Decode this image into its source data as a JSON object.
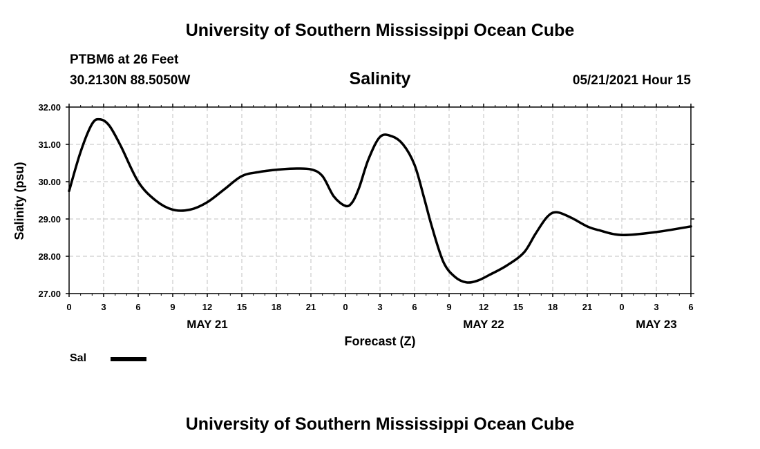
{
  "header": {
    "top_title": "University of Southern Mississippi Ocean Cube",
    "station": "PTBM6 at 26 Feet",
    "coords": "30.2130N  88.5050W",
    "date_hour": "05/21/2021 Hour 15",
    "bottom_title": "University of Southern Mississippi Ocean Cube"
  },
  "legend": {
    "label": "Sal",
    "color": "#000000"
  },
  "chart_data": {
    "type": "line",
    "title": "Salinity",
    "xlabel": "Forecast (Z)",
    "ylabel": "Salinity (psu)",
    "ylim": [
      27.0,
      32.0
    ],
    "yticks": [
      "27.00",
      "28.00",
      "29.00",
      "30.00",
      "31.00",
      "32.00"
    ],
    "xlim_hours": [
      0,
      54
    ],
    "xtick_hours": [
      0,
      3,
      6,
      9,
      12,
      15,
      18,
      21,
      24,
      27,
      30,
      33,
      36,
      39,
      42,
      45,
      48,
      51,
      54
    ],
    "xtick_labels": [
      "0",
      "3",
      "6",
      "9",
      "12",
      "15",
      "18",
      "21",
      "0",
      "3",
      "6",
      "9",
      "12",
      "15",
      "18",
      "21",
      "0",
      "3",
      "6"
    ],
    "date_labels": [
      {
        "hour": 12,
        "label": "MAY 21"
      },
      {
        "hour": 36,
        "label": "MAY 22"
      },
      {
        "hour": 51,
        "label": "MAY 23"
      }
    ],
    "grid": true,
    "series": [
      {
        "name": "Sal",
        "x": [
          0,
          1,
          2,
          2.7,
          3.5,
          4.5,
          6,
          7.5,
          9,
          10.5,
          12,
          13.5,
          15,
          16.5,
          18,
          19.5,
          21,
          22,
          23,
          24,
          24.6,
          25.2,
          26,
          27,
          28,
          29,
          30,
          30.8,
          31.5,
          32.5,
          33.5,
          34.5,
          35.5,
          36.5,
          38,
          39.5,
          40.5,
          41.5,
          42.3,
          43.5,
          45,
          46,
          48,
          51,
          54
        ],
        "y": [
          29.75,
          30.8,
          31.55,
          31.67,
          31.5,
          30.95,
          30.0,
          29.5,
          29.25,
          29.25,
          29.45,
          29.8,
          30.15,
          30.26,
          30.32,
          30.35,
          30.33,
          30.15,
          29.6,
          29.35,
          29.45,
          29.85,
          30.6,
          31.2,
          31.22,
          31.0,
          30.45,
          29.6,
          28.8,
          27.85,
          27.45,
          27.3,
          27.35,
          27.5,
          27.75,
          28.1,
          28.6,
          29.05,
          29.18,
          29.05,
          28.8,
          28.7,
          28.57,
          28.65,
          28.8
        ]
      }
    ]
  }
}
